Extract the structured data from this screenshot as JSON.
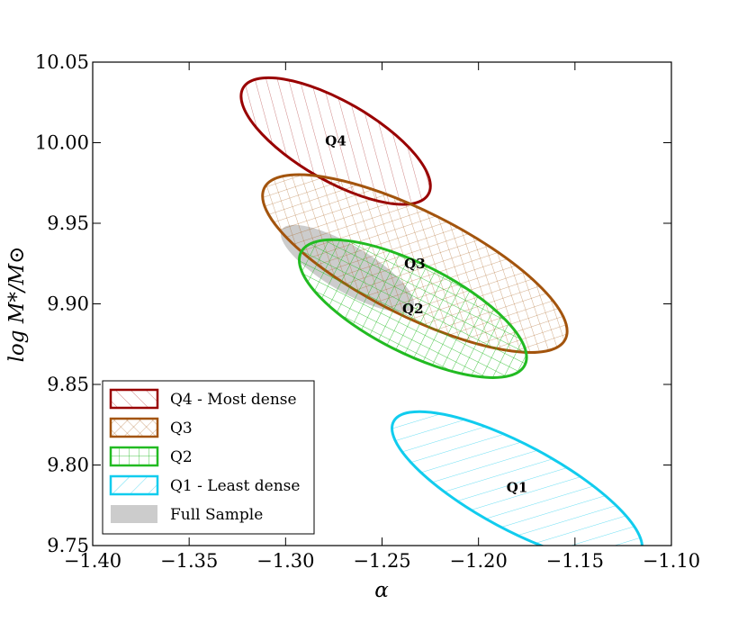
{
  "chart_data": {
    "type": "scatter",
    "xlabel": "α",
    "ylabel": "log M*/M⊙",
    "xlim": [
      -1.4,
      -1.1
    ],
    "ylim": [
      9.75,
      10.05
    ],
    "xticks": [
      "−1.40",
      "−1.35",
      "−1.30",
      "−1.25",
      "−1.20",
      "−1.15",
      "−1.10"
    ],
    "yticks": [
      "10.05",
      "10.00",
      "9.95",
      "9.90",
      "9.85",
      "9.80",
      "9.75"
    ],
    "legend_position": "lower-left",
    "series": [
      {
        "name": "Full Sample",
        "legend_label": "Full Sample",
        "color": "#cccccc",
        "style": "filled",
        "center": [
          -1.268,
          9.922
        ],
        "top_left": [
          -1.302,
          9.946
        ],
        "bottom_right": [
          -1.234,
          9.898
        ],
        "minor_width": 0.024,
        "label": ""
      },
      {
        "name": "Q4",
        "legend_label": "Q4 - Most dense",
        "color": "#990000",
        "hatch": "backslash",
        "center": [
          -1.274,
          10.001
        ],
        "top_left": [
          -1.322,
          10.034
        ],
        "bottom_right": [
          -1.226,
          9.968
        ],
        "minor_width": 0.041,
        "label": "Q4"
      },
      {
        "name": "Q3",
        "legend_label": "Q3",
        "color": "#a3540d",
        "hatch": "cross",
        "center": [
          -1.233,
          9.925
        ],
        "top_left": [
          -1.311,
          9.972
        ],
        "bottom_right": [
          -1.155,
          9.878
        ],
        "minor_width": 0.054,
        "label": "Q3"
      },
      {
        "name": "Q2",
        "legend_label": "Q2",
        "color": "#22bb22",
        "hatch": "grid",
        "center": [
          -1.234,
          9.897
        ],
        "top_left": [
          -1.292,
          9.932
        ],
        "bottom_right": [
          -1.176,
          9.862
        ],
        "minor_width": 0.046,
        "label": "Q2"
      },
      {
        "name": "Q1",
        "legend_label": "Q1 - Least dense",
        "color": "#11ccee",
        "hatch": "slash",
        "center": [
          -1.18,
          9.786
        ],
        "top_left": [
          -1.244,
          9.827
        ],
        "bottom_right": [
          -1.116,
          9.745
        ],
        "minor_width": 0.044,
        "label": "Q1"
      }
    ]
  }
}
